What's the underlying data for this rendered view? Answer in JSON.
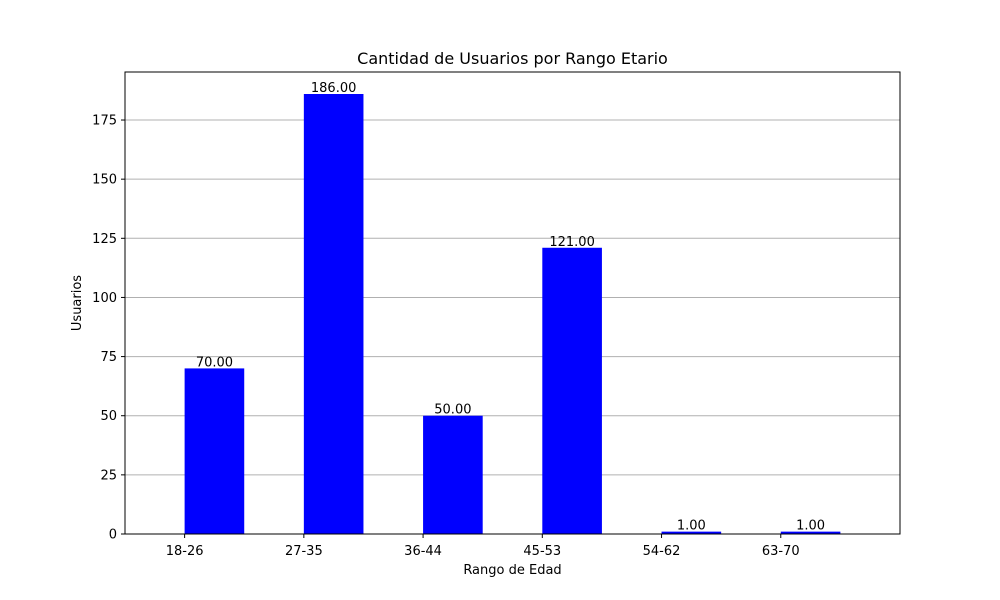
{
  "chart_data": {
    "type": "bar",
    "title": "Cantidad de Usuarios por Rango Etario",
    "xlabel": "Rango de Edad",
    "ylabel": "Usuarios",
    "categories": [
      "18-26",
      "27-35",
      "36-44",
      "45-53",
      "54-62",
      "63-70"
    ],
    "values": [
      70,
      186,
      50,
      121,
      1,
      1
    ],
    "data_labels": [
      "70.00",
      "186.00",
      "50.00",
      "121.00",
      "1.00",
      "1.00"
    ],
    "ylim": [
      0,
      195.3
    ],
    "yticks": [
      0,
      25,
      50,
      75,
      100,
      125,
      150,
      175
    ],
    "grid": "y-axis",
    "bar_color": "#0000ff"
  }
}
